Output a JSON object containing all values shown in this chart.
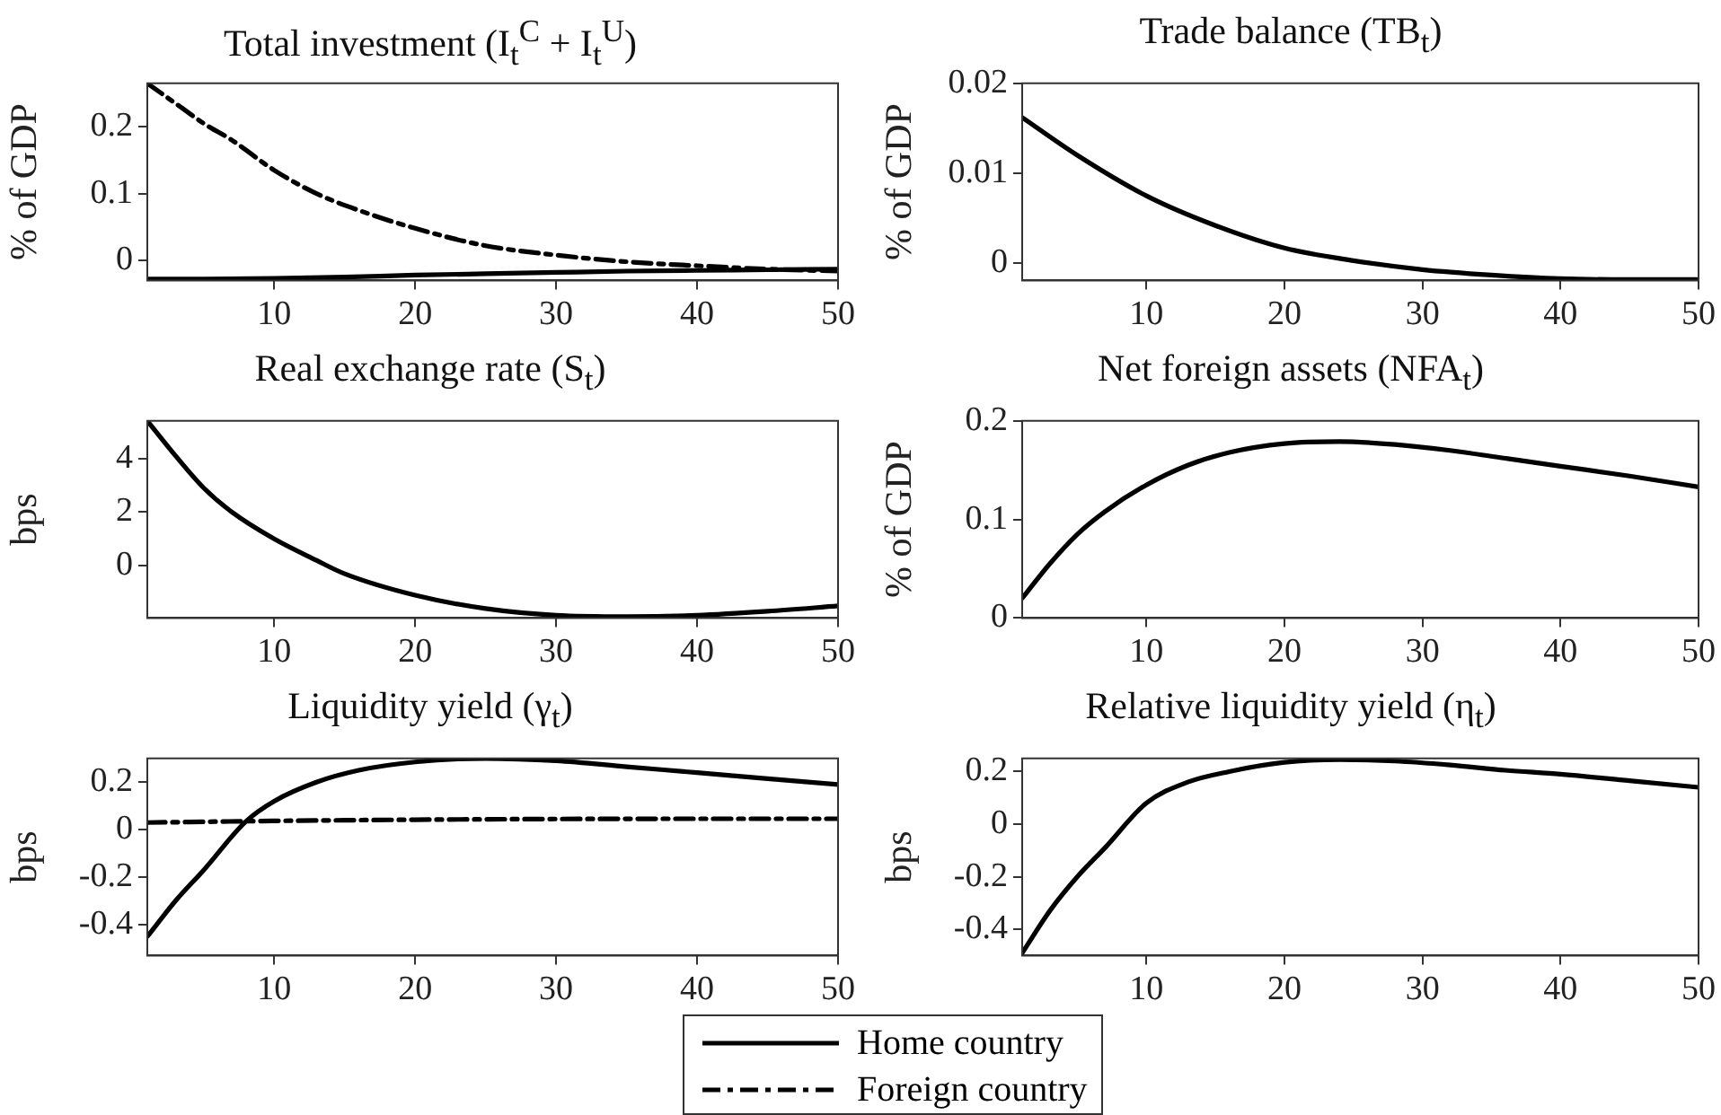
{
  "chart_data": [
    {
      "type": "line",
      "title": "Total investment (I$_{t}$$^{C}$ + I$_{t}$$^{U}$)",
      "ylabel": "% of GDP",
      "xlim": [
        1,
        50
      ],
      "xticks": [
        10,
        20,
        30,
        40,
        50
      ],
      "ylim": [
        -0.03,
        0.265
      ],
      "yticks": [
        0,
        0.1,
        0.2
      ],
      "grid": false,
      "marker": "none",
      "legend": false,
      "series": [
        {
          "color": "#000000",
          "line_style": "solid",
          "x": [
            1,
            5,
            10,
            15,
            20,
            25,
            30,
            35,
            40,
            45,
            50
          ],
          "values": [
            -0.028,
            -0.028,
            -0.027,
            -0.025,
            -0.022,
            -0.02,
            -0.018,
            -0.016,
            -0.015,
            -0.014,
            -0.013
          ]
        },
        {
          "color": "#000000",
          "line_style": "dashed",
          "x": [
            1,
            3,
            5,
            7,
            10,
            13,
            16,
            20,
            25,
            30,
            35,
            40,
            45,
            50
          ],
          "values": [
            0.265,
            0.235,
            0.205,
            0.18,
            0.135,
            0.1,
            0.075,
            0.048,
            0.022,
            0.008,
            -0.002,
            -0.008,
            -0.013,
            -0.016
          ]
        }
      ]
    },
    {
      "type": "line",
      "title": "Trade balance (TB$_{t}$)",
      "ylabel": "% of GDP",
      "xlim": [
        1,
        50
      ],
      "xticks": [
        10,
        20,
        30,
        40,
        50
      ],
      "ylim": [
        -0.0019,
        0.02
      ],
      "yticks": [
        0,
        0.01,
        0.02
      ],
      "grid": false,
      "marker": "none",
      "legend": false,
      "series": [
        {
          "color": "#000000",
          "line_style": "solid",
          "x": [
            1,
            5,
            10,
            15,
            20,
            25,
            30,
            35,
            40,
            45,
            50
          ],
          "values": [
            0.0162,
            0.012,
            0.0075,
            0.0042,
            0.0017,
            0.0003,
            -0.0007,
            -0.0013,
            -0.0017,
            -0.0018,
            -0.0018
          ]
        }
      ]
    },
    {
      "type": "line",
      "title": "Real exchange rate (S$_{t}$)",
      "ylabel": "bps",
      "xlim": [
        1,
        50
      ],
      "xticks": [
        10,
        20,
        30,
        40,
        50
      ],
      "ylim": [
        -1.95,
        5.4
      ],
      "yticks": [
        0,
        2,
        4
      ],
      "grid": false,
      "marker": "none",
      "legend": false,
      "series": [
        {
          "color": "#000000",
          "line_style": "solid",
          "x": [
            1,
            3,
            5,
            7,
            10,
            13,
            15,
            20,
            25,
            30,
            35,
            40,
            45,
            50
          ],
          "values": [
            5.4,
            4.1,
            2.9,
            2.0,
            1.0,
            0.2,
            -0.3,
            -1.1,
            -1.6,
            -1.85,
            -1.9,
            -1.85,
            -1.7,
            -1.5
          ]
        }
      ]
    },
    {
      "type": "line",
      "title": "Net foreign assets (NFA$_{t}$)",
      "ylabel": "% of GDP",
      "xlim": [
        1,
        50
      ],
      "xticks": [
        10,
        20,
        30,
        40,
        50
      ],
      "ylim": [
        0,
        0.2
      ],
      "yticks": [
        0,
        0.1,
        0.2
      ],
      "grid": false,
      "marker": "none",
      "legend": false,
      "series": [
        {
          "color": "#000000",
          "line_style": "solid",
          "x": [
            1,
            3,
            5,
            7,
            10,
            13,
            16,
            20,
            24,
            28,
            32,
            36,
            40,
            45,
            50
          ],
          "values": [
            0.02,
            0.055,
            0.085,
            0.108,
            0.135,
            0.155,
            0.168,
            0.177,
            0.179,
            0.176,
            0.17,
            0.162,
            0.154,
            0.144,
            0.133
          ]
        }
      ]
    },
    {
      "type": "line",
      "title": "Liquidity yield (γ$_{t}$)",
      "ylabel": "bps",
      "xlim": [
        1,
        50
      ],
      "xticks": [
        10,
        20,
        30,
        40,
        50
      ],
      "ylim": [
        -0.53,
        0.3
      ],
      "yticks": [
        -0.4,
        -0.2,
        0,
        0.2
      ],
      "grid": false,
      "marker": "none",
      "legend": "bottom",
      "series": [
        {
          "name": "Home country",
          "color": "#000000",
          "line_style": "solid",
          "x": [
            1,
            3,
            5,
            8,
            10,
            13,
            16,
            20,
            25,
            30,
            35,
            40,
            45,
            50
          ],
          "values": [
            -0.45,
            -0.3,
            -0.17,
            0.035,
            0.12,
            0.2,
            0.25,
            0.285,
            0.3,
            0.29,
            0.265,
            0.24,
            0.215,
            0.19
          ]
        },
        {
          "name": "Foreign country",
          "color": "#000000",
          "line_style": "dashed",
          "x": [
            1,
            10,
            20,
            30,
            40,
            50
          ],
          "values": [
            0.03,
            0.037,
            0.042,
            0.045,
            0.046,
            0.046
          ]
        }
      ]
    },
    {
      "type": "line",
      "title": "Relative liquidity yield (η$_{t}$)",
      "ylabel": "bps",
      "xlim": [
        1,
        50
      ],
      "xticks": [
        10,
        20,
        30,
        40,
        50
      ],
      "ylim": [
        -0.5,
        0.25
      ],
      "yticks": [
        -0.4,
        -0.2,
        0,
        0.2
      ],
      "grid": false,
      "marker": "none",
      "legend": false,
      "series": [
        {
          "color": "#000000",
          "line_style": "solid",
          "x": [
            1,
            3,
            5,
            7,
            10,
            13,
            16,
            20,
            24,
            28,
            32,
            36,
            40,
            45,
            50
          ],
          "values": [
            -0.49,
            -0.33,
            -0.2,
            -0.09,
            0.08,
            0.16,
            0.2,
            0.235,
            0.245,
            0.24,
            0.225,
            0.205,
            0.19,
            0.165,
            0.14
          ]
        }
      ]
    }
  ]
}
